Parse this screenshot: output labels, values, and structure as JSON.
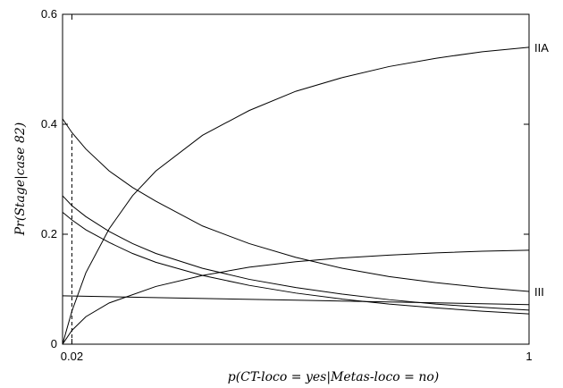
{
  "chart_data": {
    "type": "line",
    "xlabel": "p(CT-loco = yes|Metas-loco = no)",
    "ylabel": "Pr(Stage|case 82)",
    "xlim": [
      0,
      1
    ],
    "ylim": [
      0,
      0.6
    ],
    "x_ticks": [
      {
        "value": 0.02,
        "label": "0.02"
      },
      {
        "value": 1,
        "label": "1"
      }
    ],
    "y_ticks": [
      {
        "value": 0,
        "label": "0"
      },
      {
        "value": 0.2,
        "label": "0.2"
      },
      {
        "value": 0.4,
        "label": "0.4"
      },
      {
        "value": 0.6,
        "label": "0.6"
      }
    ],
    "marker_x": 0.02,
    "grid": false,
    "legend": "none",
    "series": [
      {
        "name": "IIA",
        "x": [
          0,
          0.02,
          0.05,
          0.1,
          0.15,
          0.2,
          0.3,
          0.4,
          0.5,
          0.6,
          0.7,
          0.8,
          0.9,
          1.0
        ],
        "values": [
          0.0,
          0.06,
          0.13,
          0.21,
          0.27,
          0.315,
          0.38,
          0.425,
          0.46,
          0.485,
          0.505,
          0.52,
          0.532,
          0.54
        ]
      },
      {
        "name": "III",
        "x": [
          0,
          0.02,
          0.05,
          0.1,
          0.15,
          0.2,
          0.3,
          0.4,
          0.5,
          0.6,
          0.7,
          0.8,
          0.9,
          1.0
        ],
        "values": [
          0.41,
          0.385,
          0.355,
          0.315,
          0.285,
          0.26,
          0.215,
          0.183,
          0.158,
          0.138,
          0.123,
          0.112,
          0.103,
          0.096
        ]
      },
      {
        "name": "",
        "x": [
          0,
          0.02,
          0.05,
          0.1,
          0.2,
          0.3,
          0.4,
          0.5,
          0.6,
          0.7,
          0.8,
          0.9,
          1.0
        ],
        "values": [
          0.0,
          0.025,
          0.05,
          0.075,
          0.105,
          0.125,
          0.14,
          0.15,
          0.157,
          0.162,
          0.166,
          0.169,
          0.171
        ]
      },
      {
        "name": "",
        "x": [
          0,
          0.02,
          0.05,
          0.1,
          0.15,
          0.2,
          0.3,
          0.4,
          0.5,
          0.6,
          0.7,
          0.8,
          0.9,
          1.0
        ],
        "values": [
          0.27,
          0.252,
          0.232,
          0.205,
          0.183,
          0.165,
          0.138,
          0.118,
          0.103,
          0.091,
          0.081,
          0.073,
          0.067,
          0.062
        ]
      },
      {
        "name": "",
        "x": [
          0,
          0.02,
          0.05,
          0.1,
          0.15,
          0.2,
          0.3,
          0.4,
          0.5,
          0.6,
          0.7,
          0.8,
          0.9,
          1.0
        ],
        "values": [
          0.24,
          0.226,
          0.208,
          0.185,
          0.165,
          0.149,
          0.125,
          0.107,
          0.093,
          0.082,
          0.073,
          0.066,
          0.06,
          0.055
        ]
      },
      {
        "name": "",
        "x": [
          0,
          0.25,
          0.5,
          0.75,
          1.0
        ],
        "values": [
          0.088,
          0.084,
          0.08,
          0.076,
          0.072
        ]
      }
    ]
  }
}
